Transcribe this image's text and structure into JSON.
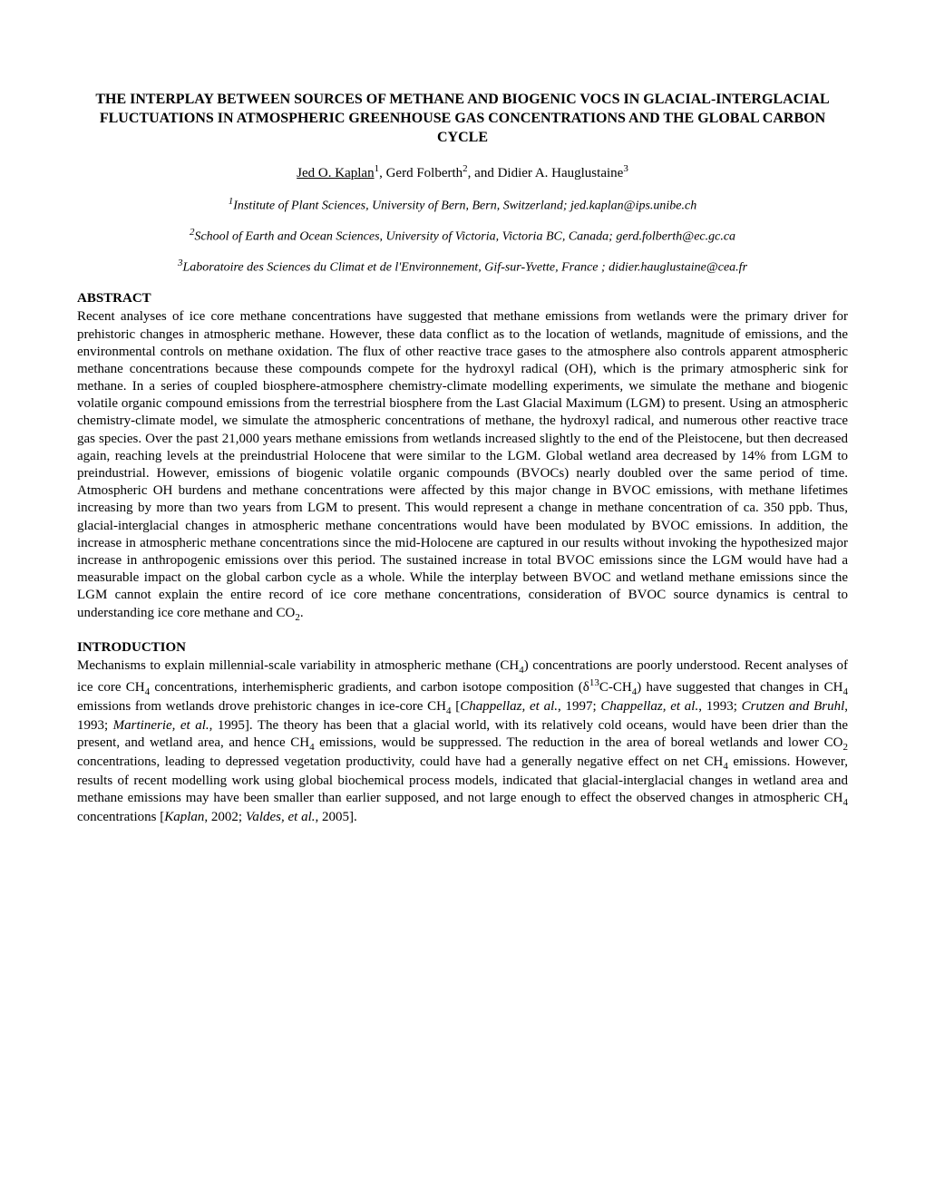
{
  "title": "THE INTERPLAY BETWEEN SOURCES OF METHANE AND BIOGENIC VOCS IN GLACIAL-INTERGLACIAL FLUCTUATIONS IN ATMOSPHERIC GREENHOUSE GAS CONCENTRATIONS AND THE GLOBAL CARBON CYCLE",
  "authors": {
    "a1_name": "Jed O. Kaplan",
    "a1_sup": "1",
    "a2_name": "Gerd Folberth",
    "a2_sup": "2",
    "a3_name": "Didier A. Hauglustaine",
    "a3_sup": "3",
    "sep1": ", ",
    "sep2": ", and "
  },
  "affiliations": {
    "af1_sup": "1",
    "af1_text": "Institute of Plant Sciences, University of Bern, Bern, Switzerland; jed.kaplan@ips.unibe.ch",
    "af2_sup": "2",
    "af2_text": "School of Earth and Ocean Sciences, University of Victoria, Victoria BC, Canada; gerd.folberth@ec.gc.ca",
    "af3_sup": "3",
    "af3_text": "Laboratoire des Sciences du Climat et de l'Environnement, Gif-sur-Yvette, France ; didier.hauglustaine@cea.fr"
  },
  "abstract": {
    "heading": "ABSTRACT",
    "text_p1": "Recent analyses of ice core methane concentrations have suggested that methane emissions from wetlands were the primary driver for prehistoric changes in atmospheric methane. However, these data conflict as to the location of wetlands, magnitude of emissions, and the environmental controls on methane oxidation. The flux of other reactive trace gases to the atmosphere also controls apparent atmospheric methane concentrations because these compounds compete for the hydroxyl radical (OH), which is the primary atmospheric sink for methane. In a series of coupled biosphere-atmosphere chemistry-climate modelling experiments, we simulate the methane and biogenic volatile organic compound emissions from the terrestrial biosphere from the Last Glacial Maximum (LGM) to present. Using an atmospheric chemistry-climate model, we simulate the atmospheric concentrations of methane, the hydroxyl radical, and numerous other reactive trace gas species. Over the past 21,000 years methane emissions from wetlands increased slightly to the end of the Pleistocene, but then decreased again, reaching levels at the preindustrial Holocene that were similar to the LGM. Global wetland area decreased by 14% from LGM to preindustrial. However, emissions of biogenic volatile organic compounds (BVOCs) nearly doubled over the same period of time. Atmospheric OH burdens and methane concentrations were affected by this major change in BVOC emissions, with methane lifetimes increasing by more than two years from LGM to present. This would represent a change in methane concentration of ca. 350 ppb. Thus, glacial-interglacial changes in atmospheric methane concentrations would have been modulated by BVOC emissions. In addition, the increase in atmospheric methane concentrations since the mid-Holocene are captured in our results without invoking the hypothesized major increase in anthropogenic emissions over this period. The sustained increase in total BVOC emissions since the LGM would have had a measurable impact on the global carbon cycle as a whole. While the interplay between BVOC and wetland methane emissions since the LGM cannot explain the entire record of ice core methane concentrations, consideration of BVOC source dynamics is central to understanding ice core methane and CO",
    "text_sub1": "2",
    "text_p1_end": "."
  },
  "introduction": {
    "heading": "INTRODUCTION",
    "p1_a": "Mechanisms to explain millennial-scale variability in atmospheric methane (CH",
    "p1_sub1": "4",
    "p1_b": ") concentrations are poorly understood. Recent analyses of ice core CH",
    "p1_sub2": "4",
    "p1_c": " concentrations, interhemispheric gradients, and carbon isotope composition (δ",
    "p1_sup1": "13",
    "p1_d": "C-CH",
    "p1_sub3": "4",
    "p1_e": ") have suggested that changes in CH",
    "p1_sub4": "4",
    "p1_f": " emissions from wetlands drove prehistoric changes in ice-core CH",
    "p1_sub5": "4",
    "p1_g": " [",
    "cite1": "Chappellaz, et al.",
    "p1_h": ", 1997; ",
    "cite2": "Chappellaz, et al.",
    "p1_i": ", 1993; ",
    "cite3": "Crutzen and Bruhl",
    "p1_j": ", 1993; ",
    "cite4": "Martinerie, et al.",
    "p1_k": ", 1995]. The theory has been that a glacial world, with its relatively cold oceans, would have been drier than the present, and wetland area, and hence CH",
    "p1_sub6": "4",
    "p1_l": " emissions, would be suppressed. The reduction in the area of boreal wetlands and lower CO",
    "p1_sub7": "2",
    "p1_m": " concentrations, leading to depressed vegetation productivity, could have had a generally negative effect on net CH",
    "p1_sub8": "4",
    "p1_n": " emissions. However, results of recent modelling work using global biochemical process models, indicated that glacial-interglacial changes in wetland area and methane emissions may have been smaller than earlier supposed, and not large enough to effect the observed changes in atmospheric CH",
    "p1_sub9": "4",
    "p1_o": " concentrations [",
    "cite5": "Kaplan",
    "p1_p": ", 2002; ",
    "cite6": "Valdes, et al.",
    "p1_q": ", 2005]."
  }
}
